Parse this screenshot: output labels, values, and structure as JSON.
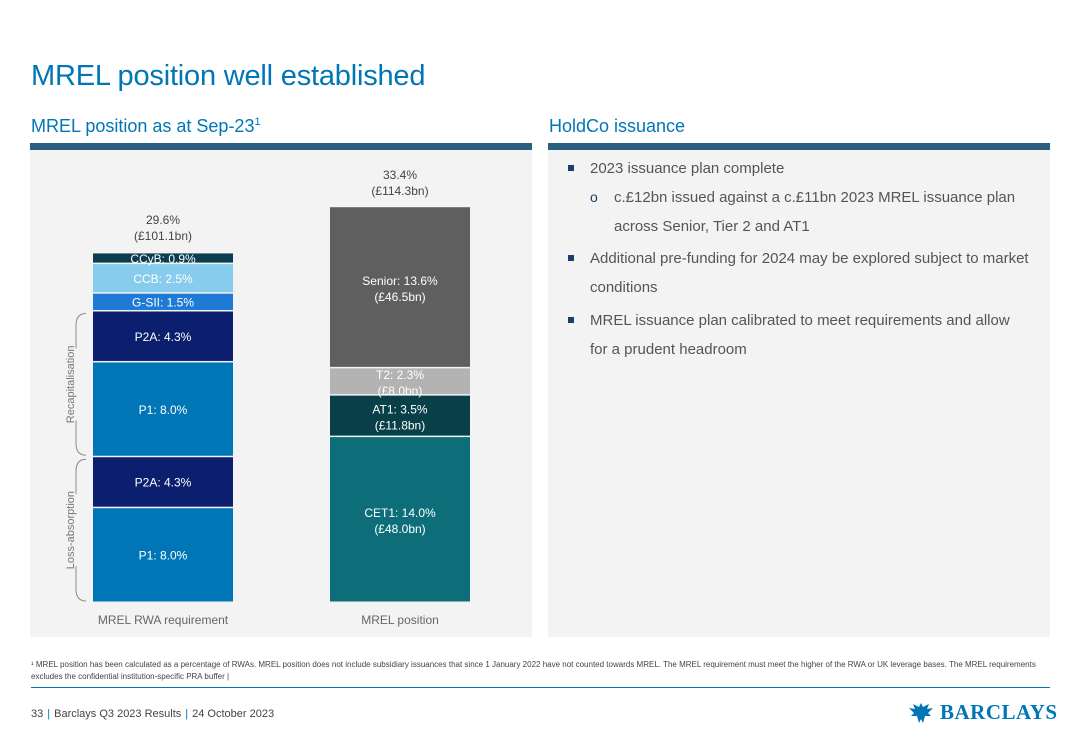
{
  "page": {
    "title": "MREL position well established",
    "left_heading": "MREL position as at Sep-23",
    "left_heading_sup": "1",
    "right_heading": "HoldCo issuance",
    "footnote": "¹ MREL position has been calculated as a percentage of RWAs. MREL position does not include subsidiary issuances that since 1 January 2022 have not counted towards MREL. The MREL requirement must meet the higher of the RWA or UK leverage bases. The MREL requirements excludes the confidential institution-specific PRA buffer |",
    "footer_page": "33",
    "footer_doc": "Barclays Q3 2023 Results",
    "footer_date": "24 October 2023",
    "logo_text": "BARCLAYS"
  },
  "bullets": [
    {
      "level": 1,
      "text": "2023 issuance plan complete"
    },
    {
      "level": 2,
      "text": "c.£12bn issued against a c.£11bn 2023 MREL issuance plan across Senior, Tier 2 and AT1"
    },
    {
      "level": 1,
      "text": "Additional pre-funding for 2024 may be explored subject to market conditions"
    },
    {
      "level": 1,
      "text": "MREL issuance plan calibrated to meet requirements and allow for a prudent headroom"
    }
  ],
  "colors": {
    "title_blue": "#0076b6",
    "p1": "#0076b6",
    "p2a": "#0b1f6e",
    "gsii": "#1f7ad6",
    "ccb": "#87ccec",
    "ccyb": "#0a3d4f",
    "cet1": "#0d6e7a",
    "at1": "#083f48",
    "t2": "#b3b3b3",
    "senior": "#5f5f5f"
  },
  "chart_data": {
    "type": "bar",
    "stacked": true,
    "categories": [
      "MREL RWA requirement",
      "MREL position"
    ],
    "group_labels": [
      "Loss-absorption",
      "Recapitalisation"
    ],
    "y_unit": "% of RWAs",
    "series": [
      {
        "category": "MREL RWA requirement",
        "label": "P1: 8.0%",
        "value": 8.0,
        "color_key": "p1"
      },
      {
        "category": "MREL RWA requirement",
        "label": "P2A: 4.3%",
        "value": 4.3,
        "color_key": "p2a"
      },
      {
        "category": "MREL RWA requirement",
        "label": "P1: 8.0%",
        "value": 8.0,
        "color_key": "p1"
      },
      {
        "category": "MREL RWA requirement",
        "label": "P2A: 4.3%",
        "value": 4.3,
        "color_key": "p2a"
      },
      {
        "category": "MREL RWA requirement",
        "label": "G-SII: 1.5%",
        "value": 1.5,
        "color_key": "gsii"
      },
      {
        "category": "MREL RWA requirement",
        "label": "CCB: 2.5%",
        "value": 2.5,
        "color_key": "ccb"
      },
      {
        "category": "MREL RWA requirement",
        "label": "CCyB: 0.9%",
        "value": 0.9,
        "color_key": "ccyb"
      },
      {
        "category": "MREL position",
        "label": "CET1: 14.0%",
        "sublabel": "(£48.0bn)",
        "value": 14.0,
        "color_key": "cet1"
      },
      {
        "category": "MREL position",
        "label": "AT1: 3.5%",
        "sublabel": "(£11.8bn)",
        "value": 3.5,
        "color_key": "at1"
      },
      {
        "category": "MREL position",
        "label": "T2: 2.3%",
        "sublabel": "(£8.0bn)",
        "value": 2.3,
        "color_key": "t2"
      },
      {
        "category": "MREL position",
        "label": "Senior: 13.6%",
        "sublabel": "(£46.5bn)",
        "value": 13.6,
        "color_key": "senior"
      }
    ],
    "totals": [
      {
        "category": "MREL RWA requirement",
        "label": "29.6%",
        "sublabel": "(£101.1bn)",
        "value": 29.6
      },
      {
        "category": "MREL position",
        "label": "33.4%",
        "sublabel": "(£114.3bn)",
        "value": 33.4
      }
    ]
  }
}
